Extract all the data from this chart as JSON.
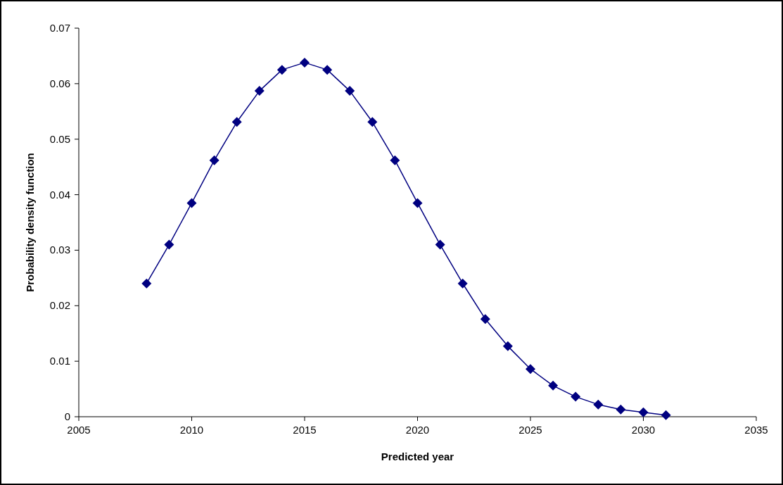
{
  "chart_data": {
    "type": "line",
    "xlabel": "Predicted year",
    "ylabel": "Probability density function",
    "x": [
      2008,
      2009,
      2010,
      2011,
      2012,
      2013,
      2014,
      2015,
      2016,
      2017,
      2018,
      2019,
      2020,
      2021,
      2022,
      2023,
      2024,
      2025,
      2026,
      2027,
      2028,
      2029,
      2030,
      2031
    ],
    "series": [
      {
        "color": "#000080",
        "values": [
          0.024,
          0.031,
          0.0385,
          0.0462,
          0.0531,
          0.0587,
          0.0625,
          0.0638,
          0.0625,
          0.0587,
          0.0531,
          0.0462,
          0.0385,
          0.031,
          0.024,
          0.0176,
          0.0127,
          0.0086,
          0.0056,
          0.0036,
          0.0022,
          0.0013,
          0.0008,
          0.0003
        ]
      }
    ],
    "xlim": [
      2005,
      2035
    ],
    "xticks": [
      2005,
      2010,
      2015,
      2020,
      2025,
      2030,
      2035
    ],
    "ylim": [
      0,
      0.07
    ],
    "yticks": [
      0,
      0.01,
      0.02,
      0.03,
      0.04,
      0.05,
      0.06,
      0.07
    ],
    "marker": "diamond",
    "line_style": "solid"
  }
}
